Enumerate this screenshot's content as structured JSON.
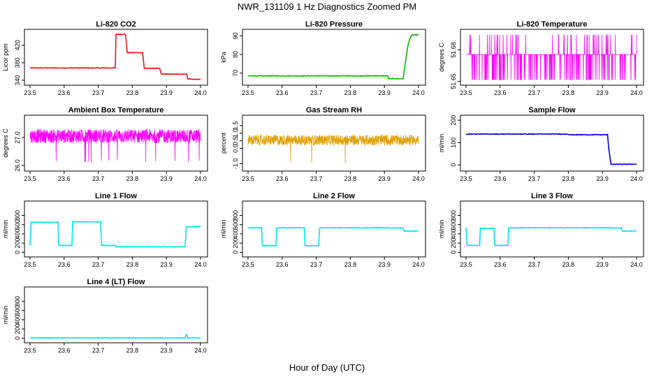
{
  "figure": {
    "title": "NWR_131109  1 Hz Diagnostics Zoomed PM",
    "xlabel": "Hour of Day (UTC)"
  },
  "chart_data": [
    {
      "id": "co2",
      "type": "line",
      "title": "Li-820 CO2",
      "ylabel": "Licor ppm",
      "color": "#e8141c",
      "xlim": [
        23.5,
        24.0
      ],
      "ylim": [
        335,
        450
      ],
      "xticks": [
        "23.5",
        "23.6",
        "23.7",
        "23.8",
        "23.9",
        "24.0"
      ],
      "yticks": [
        "340",
        "380",
        "420"
      ],
      "series": [
        {
          "x": [
            23.5,
            23.65,
            23.75,
            23.752,
            23.78,
            23.785,
            23.83,
            23.835,
            23.88,
            23.885,
            23.96,
            23.962,
            23.97,
            23.975,
            24.0
          ],
          "y": [
            368,
            368,
            368,
            445,
            445,
            403,
            403,
            367,
            367,
            354,
            354,
            343,
            343,
            342,
            342
          ]
        }
      ]
    },
    {
      "id": "pressure",
      "type": "line",
      "title": "Li-820 Pressure",
      "ylabel": "kPa",
      "color": "#00bb00",
      "xlim": [
        23.5,
        24.0
      ],
      "ylim": [
        65,
        92
      ],
      "xticks": [
        "23.5",
        "23.6",
        "23.7",
        "23.8",
        "23.9",
        "24.0"
      ],
      "yticks": [
        "70",
        "80",
        "90"
      ],
      "series": [
        {
          "x": [
            23.5,
            23.91,
            23.912,
            23.955,
            23.96,
            23.97,
            23.98,
            23.99,
            24.0
          ],
          "y": [
            68.5,
            68.5,
            67,
            67,
            74,
            86,
            90.5,
            90.5,
            90.5
          ]
        }
      ]
    },
    {
      "id": "licor_temp",
      "type": "line",
      "title": "Li-820 Temperature",
      "ylabel": "degrees C",
      "color": "#ff00ff",
      "xlim": [
        23.5,
        24.0
      ],
      "ylim": [
        51.649,
        51.697
      ],
      "xticks": [
        "23.5",
        "23.6",
        "23.7",
        "23.8",
        "23.9",
        "24.0"
      ],
      "yticks": [
        "51.65",
        "51.68"
      ],
      "noise": {
        "base": 51.6757,
        "low": 51.6515,
        "high": 51.6945,
        "mode": "binary",
        "lowprob": 0.12,
        "spikeprob": 0.06
      }
    },
    {
      "id": "ambient_temp",
      "type": "line",
      "title": "Ambient Box Temperature",
      "ylabel": "degrees C",
      "color": "#ff00ff",
      "xlim": [
        23.5,
        24.0
      ],
      "ylim": [
        25.9,
        27.7
      ],
      "xticks": [
        "23.5",
        "23.6",
        "23.7",
        "23.8",
        "23.9",
        "24.0"
      ],
      "yticks": [
        "26.0",
        "27.0"
      ],
      "noise": {
        "base": 27.05,
        "spread": 0.25,
        "dip": 26.1,
        "dipprob": 0.015
      }
    },
    {
      "id": "gas_rh",
      "type": "line",
      "title": "Gas Stream RH",
      "ylabel": "percent",
      "color": "#e0a000",
      "xlim": [
        23.5,
        24.0
      ],
      "ylim": [
        -1.3,
        2.0
      ],
      "xticks": [
        "23.5",
        "23.6",
        "23.7",
        "23.8",
        "23.9",
        "24.0"
      ],
      "yticks": [
        "-1.0",
        "0.0",
        "0.5",
        "1.0",
        "1.5"
      ],
      "noise": {
        "base": 0.55,
        "spread": 0.35,
        "dip": -1.0,
        "dipprob": 0.004
      }
    },
    {
      "id": "sample_flow",
      "type": "line",
      "title": "Sample Flow",
      "ylabel": "ml/min",
      "color": "#0000cc",
      "xlim": [
        23.5,
        24.0
      ],
      "ylim": [
        -15,
        210
      ],
      "xticks": [
        "23.5",
        "23.6",
        "23.7",
        "23.8",
        "23.9",
        "24.0"
      ],
      "yticks": [
        "0",
        "100",
        "200"
      ],
      "series": [
        {
          "x": [
            23.5,
            23.8,
            23.802,
            23.915,
            23.918,
            23.925,
            24.0
          ],
          "y": [
            138,
            138,
            135,
            135,
            80,
            3,
            3
          ]
        }
      ]
    },
    {
      "id": "line1",
      "type": "line",
      "title": "Line 1 Flow",
      "ylabel": "ml/min",
      "color": "#00e5ee",
      "xlim": [
        23.5,
        24.0
      ],
      "ylim": [
        -40,
        1050
      ],
      "xticks": [
        "23.5",
        "23.6",
        "23.7",
        "23.8",
        "23.9",
        "24.0"
      ],
      "yticks": [
        "0",
        "200",
        "400",
        "600",
        "800"
      ],
      "series": [
        {
          "x": [
            23.5,
            23.503,
            23.582,
            23.584,
            23.623,
            23.625,
            23.707,
            23.71,
            23.75,
            23.752,
            23.955,
            23.958,
            24.0
          ],
          "y": [
            150,
            650,
            650,
            150,
            150,
            660,
            660,
            150,
            150,
            120,
            120,
            550,
            560
          ]
        }
      ]
    },
    {
      "id": "line2",
      "type": "line",
      "title": "Line 2 Flow",
      "ylabel": "ml/min",
      "color": "#00e5ee",
      "xlim": [
        23.5,
        24.0
      ],
      "ylim": [
        -40,
        1050
      ],
      "xticks": [
        "23.5",
        "23.6",
        "23.7",
        "23.8",
        "23.9",
        "24.0"
      ],
      "yticks": [
        "0",
        "200",
        "400",
        "600",
        "800"
      ],
      "series": [
        {
          "x": [
            23.5,
            23.54,
            23.542,
            23.582,
            23.584,
            23.665,
            23.667,
            23.707,
            23.71,
            23.955,
            23.958,
            24.0
          ],
          "y": [
            530,
            530,
            140,
            140,
            530,
            530,
            140,
            140,
            530,
            530,
            460,
            460
          ]
        }
      ]
    },
    {
      "id": "line3",
      "type": "line",
      "title": "Line 3 Flow",
      "ylabel": "ml/min",
      "color": "#00e5ee",
      "xlim": [
        23.5,
        24.0
      ],
      "ylim": [
        -40,
        1050
      ],
      "xticks": [
        "23.5",
        "23.6",
        "23.7",
        "23.8",
        "23.9",
        "24.0"
      ],
      "yticks": [
        "0",
        "200",
        "400",
        "600",
        "800"
      ],
      "series": [
        {
          "x": [
            23.5,
            23.503,
            23.54,
            23.542,
            23.582,
            23.584,
            23.623,
            23.625,
            23.665,
            23.667,
            23.955,
            23.958,
            24.0
          ],
          "y": [
            530,
            150,
            150,
            520,
            520,
            150,
            150,
            530,
            530,
            530,
            530,
            460,
            460
          ]
        }
      ]
    },
    {
      "id": "line4",
      "type": "line",
      "title": "Line 4 (LT) Flow",
      "ylabel": "ml/min",
      "color": "#00e5ee",
      "xlim": [
        23.5,
        24.0
      ],
      "ylim": [
        -40,
        1050
      ],
      "xticks": [
        "23.5",
        "23.6",
        "23.7",
        "23.8",
        "23.9",
        "24.0"
      ],
      "yticks": [
        "0",
        "200",
        "400",
        "600",
        "800"
      ],
      "series": [
        {
          "x": [
            23.5,
            23.955,
            23.958,
            23.96,
            23.963,
            24.0
          ],
          "y": [
            5,
            5,
            80,
            60,
            5,
            5
          ]
        }
      ]
    }
  ]
}
